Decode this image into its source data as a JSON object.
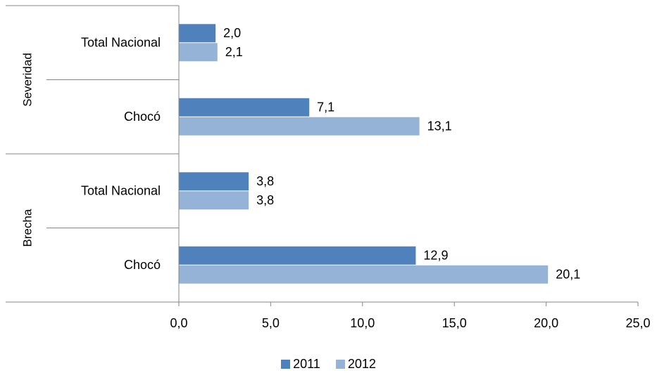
{
  "chart_data": {
    "type": "bar",
    "orientation": "horizontal",
    "groups": [
      {
        "label": "Severidad",
        "categories": [
          "Total Nacional",
          "Chocó"
        ]
      },
      {
        "label": "Brecha",
        "categories": [
          "Total Nacional",
          "Chocó"
        ]
      }
    ],
    "series": [
      {
        "name": "2011",
        "color": "#4F81BD",
        "values": [
          2.0,
          7.1,
          3.8,
          12.9
        ],
        "labels": [
          "2,0",
          "7,1",
          "3,8",
          "12,9"
        ]
      },
      {
        "name": "2012",
        "color": "#95B3D7",
        "values": [
          2.1,
          13.1,
          3.8,
          20.1
        ],
        "labels": [
          "2,1",
          "13,1",
          "3,8",
          "20,1"
        ]
      }
    ],
    "xlim": [
      0,
      25
    ],
    "xticks": [
      0,
      5,
      10,
      15,
      20,
      25
    ],
    "xtick_labels": [
      "0,0",
      "5,0",
      "10,0",
      "15,0",
      "20,0",
      "25,0"
    ],
    "grid": false,
    "legend_position": "bottom"
  }
}
